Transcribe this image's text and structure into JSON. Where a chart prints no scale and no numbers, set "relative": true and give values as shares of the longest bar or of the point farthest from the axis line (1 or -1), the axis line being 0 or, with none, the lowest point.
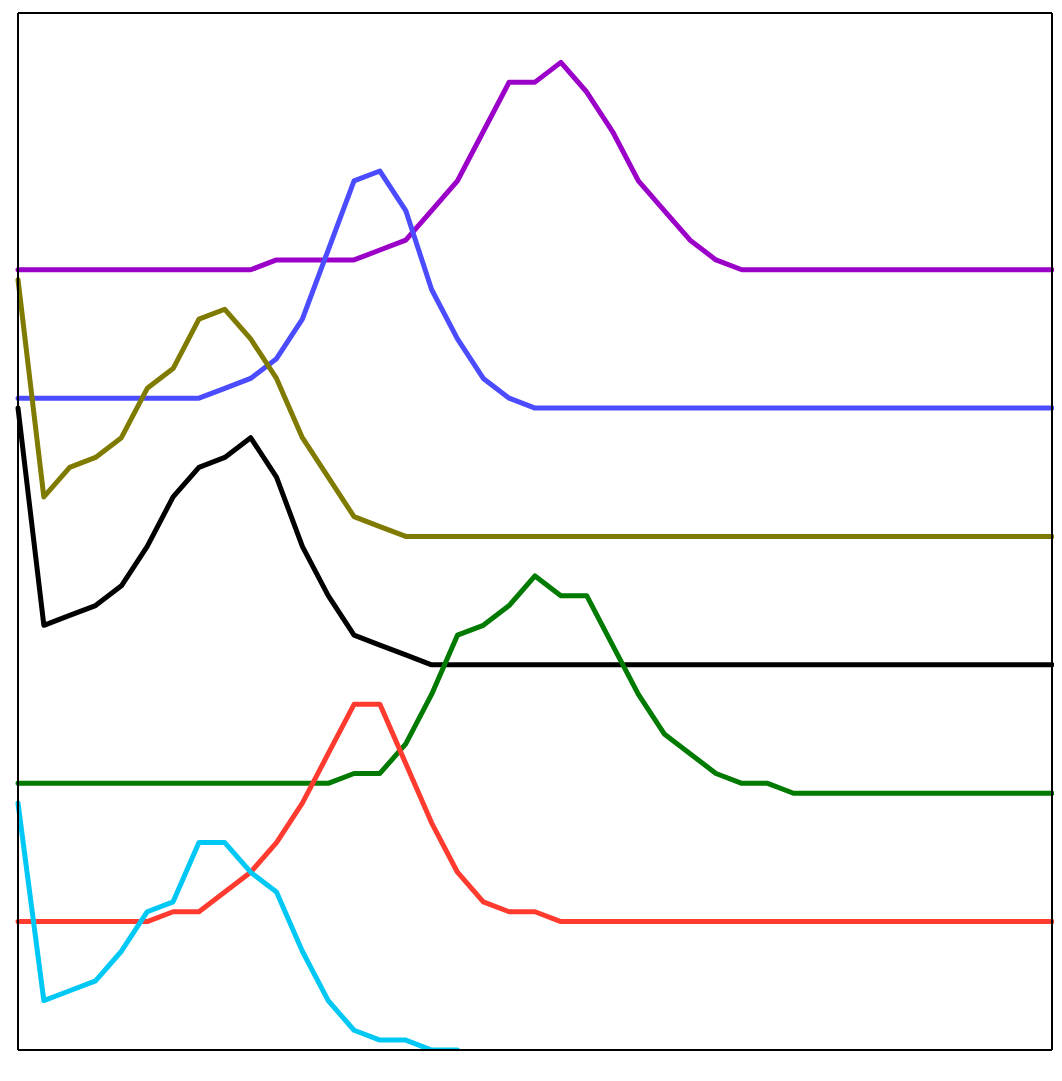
{
  "chart_data": {
    "type": "line",
    "relative": true,
    "categories": [
      null,
      null,
      null,
      null,
      null,
      null,
      null,
      null,
      null,
      null,
      null,
      null,
      null,
      null,
      null,
      null,
      null,
      null,
      null,
      null,
      null,
      null,
      null,
      null,
      null,
      null,
      null,
      null,
      null,
      null,
      null,
      null,
      null,
      null,
      null,
      null,
      null,
      null,
      null,
      null,
      null
    ],
    "series": [
      {
        "color": "#9b00c8",
        "values": [
          0.79,
          0.79,
          0.79,
          0.79,
          0.79,
          0.79,
          0.79,
          0.79,
          0.79,
          0.79,
          0.8,
          0.8,
          0.8,
          0.8,
          0.81,
          0.82,
          0.85,
          0.88,
          0.93,
          0.98,
          0.98,
          1,
          0.97,
          0.93,
          0.88,
          0.85,
          0.82,
          0.8,
          0.79,
          0.79,
          0.79,
          0.79,
          0.79,
          0.79,
          0.79,
          0.79,
          0.79,
          0.79,
          0.79,
          0.79,
          0.79
        ]
      },
      {
        "color": "#4b4bff",
        "values": [
          0.66,
          0.66,
          0.66,
          0.66,
          0.66,
          0.66,
          0.66,
          0.66,
          0.67,
          0.68,
          0.7,
          0.74,
          0.81,
          0.88,
          0.89,
          0.85,
          0.77,
          0.72,
          0.68,
          0.66,
          0.65,
          0.65,
          0.65,
          0.65,
          0.65,
          0.65,
          0.65,
          0.65,
          0.65,
          0.65,
          0.65,
          0.65,
          0.65,
          0.65,
          0.65,
          0.65,
          0.65,
          0.65,
          0.65,
          0.65,
          0.65
        ]
      },
      {
        "color": "#7f7a00",
        "values": [
          0.78,
          0.56,
          0.59,
          0.6,
          0.62,
          0.67,
          0.69,
          0.74,
          0.75,
          0.72,
          0.68,
          0.62,
          0.58,
          0.54,
          0.53,
          0.52,
          0.52,
          0.52,
          0.52,
          0.52,
          0.52,
          0.52,
          0.52,
          0.52,
          0.52,
          0.52,
          0.52,
          0.52,
          0.52,
          0.52,
          0.52,
          0.52,
          0.52,
          0.52,
          0.52,
          0.52,
          0.52,
          0.52,
          0.52,
          0.52,
          0.52
        ]
      },
      {
        "color": "#000000",
        "values": [
          0.65,
          0.43,
          0.44,
          0.45,
          0.47,
          0.51,
          0.56,
          0.59,
          0.6,
          0.62,
          0.58,
          0.51,
          0.46,
          0.42,
          0.41,
          0.4,
          0.39,
          0.39,
          0.39,
          0.39,
          0.39,
          0.39,
          0.39,
          0.39,
          0.39,
          0.39,
          0.39,
          0.39,
          0.39,
          0.39,
          0.39,
          0.39,
          0.39,
          0.39,
          0.39,
          0.39,
          0.39,
          0.39,
          0.39,
          0.39,
          0.39
        ]
      },
      {
        "color": "#007a00",
        "values": [
          0.27,
          0.27,
          0.27,
          0.27,
          0.27,
          0.27,
          0.27,
          0.27,
          0.27,
          0.27,
          0.27,
          0.27,
          0.27,
          0.28,
          0.28,
          0.31,
          0.36,
          0.42,
          0.43,
          0.45,
          0.48,
          0.46,
          0.46,
          0.41,
          0.36,
          0.32,
          0.3,
          0.28,
          0.27,
          0.27,
          0.26,
          0.26,
          0.26,
          0.26,
          0.26,
          0.26,
          0.26,
          0.26,
          0.26,
          0.26,
          0.26
        ]
      },
      {
        "color": "#ff3b30",
        "values": [
          0.13,
          0.13,
          0.13,
          0.13,
          0.13,
          0.13,
          0.14,
          0.14,
          0.16,
          0.18,
          0.21,
          0.25,
          0.3,
          0.35,
          0.35,
          0.29,
          0.23,
          0.18,
          0.15,
          0.14,
          0.14,
          0.13,
          0.13,
          0.13,
          0.13,
          0.13,
          0.13,
          0.13,
          0.13,
          0.13,
          0.13,
          0.13,
          0.13,
          0.13,
          0.13,
          0.13,
          0.13,
          0.13,
          0.13,
          0.13,
          0.13
        ]
      },
      {
        "color": "#00c8f5",
        "values": [
          0.25,
          0.05,
          0.06,
          0.07,
          0.1,
          0.14,
          0.15,
          0.21,
          0.21,
          0.18,
          0.16,
          0.1,
          0.05,
          0.02,
          0.01,
          0.01,
          0,
          0,
          null,
          null,
          null,
          null,
          null,
          null,
          null,
          null,
          null,
          null,
          null,
          null,
          null,
          null,
          null,
          null,
          null,
          null,
          null,
          null,
          null,
          null,
          null
        ]
      }
    ]
  }
}
